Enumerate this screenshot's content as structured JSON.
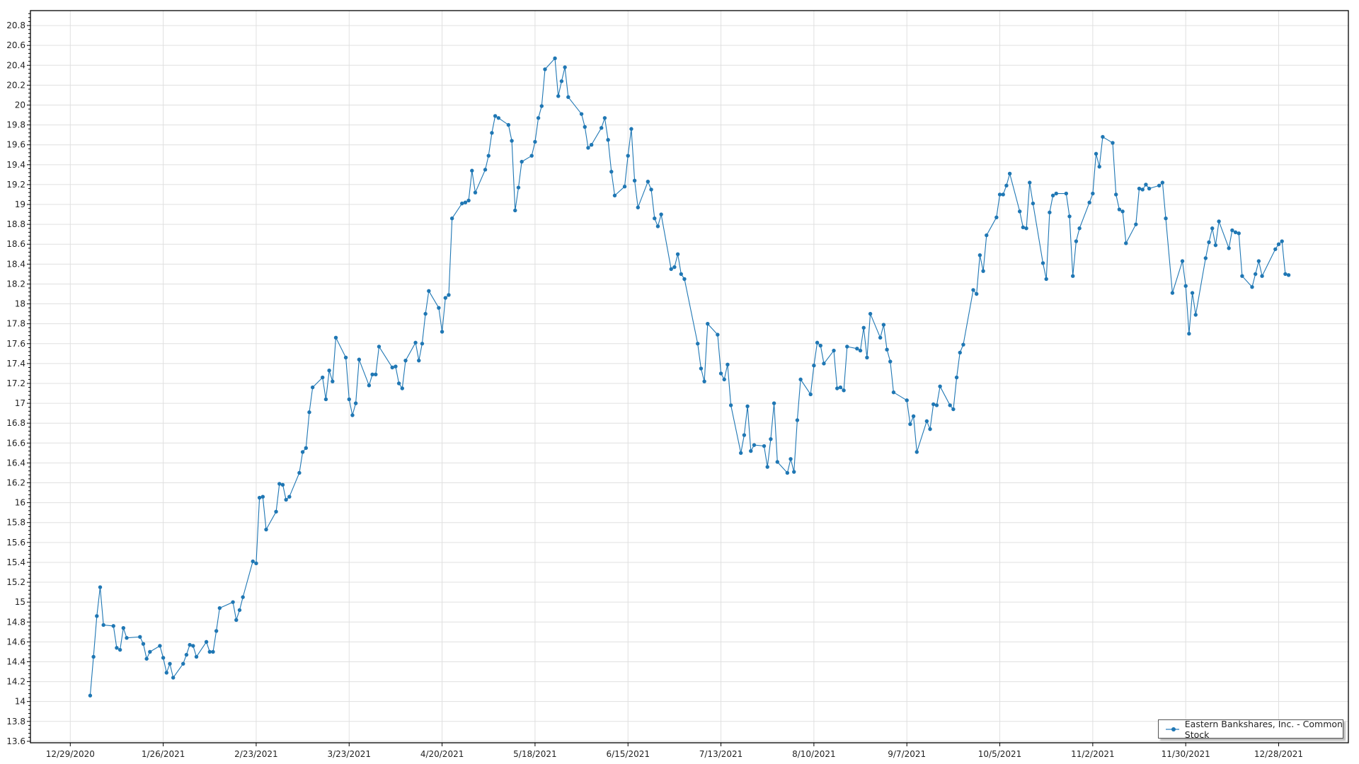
{
  "chart_data": {
    "type": "line",
    "title": "",
    "xlabel": "",
    "ylabel": "",
    "x_type": "date",
    "xlim": [
      "12/17/2020",
      "1/18/2022"
    ],
    "ylim": [
      13.585,
      20.95
    ],
    "x_ticks": [
      "12/29/2020",
      "1/26/2021",
      "2/23/2021",
      "3/23/2021",
      "4/20/2021",
      "5/18/2021",
      "6/15/2021",
      "7/13/2021",
      "8/10/2021",
      "9/7/2021",
      "10/5/2021",
      "11/2/2021",
      "11/30/2021",
      "12/28/2021"
    ],
    "y_ticks": [
      "13.6",
      "13.8",
      "14",
      "14.2",
      "14.4",
      "14.6",
      "14.8",
      "15",
      "15.2",
      "15.4",
      "15.6",
      "15.8",
      "16",
      "16.2",
      "16.4",
      "16.6",
      "16.8",
      "17",
      "17.2",
      "17.4",
      "17.6",
      "17.8",
      "18",
      "18.2",
      "18.4",
      "18.6",
      "18.8",
      "19",
      "19.2",
      "19.4",
      "19.6",
      "19.8",
      "20",
      "20.2",
      "20.4",
      "20.6",
      "20.8"
    ],
    "grid": true,
    "legend_placement": "bottom-right",
    "colors": {
      "series": "#1f77b4",
      "grid": "#e0e0e0",
      "axis": "#000000"
    },
    "series": [
      {
        "name": "Eastern Bankshares, Inc. - Common Stock",
        "marker": "circle",
        "points": [
          [
            "1/4/2021",
            14.06
          ],
          [
            "1/5/2021",
            14.45
          ],
          [
            "1/6/2021",
            14.86
          ],
          [
            "1/7/2021",
            15.15
          ],
          [
            "1/8/2021",
            14.77
          ],
          [
            "1/11/2021",
            14.76
          ],
          [
            "1/12/2021",
            14.54
          ],
          [
            "1/13/2021",
            14.52
          ],
          [
            "1/14/2021",
            14.74
          ],
          [
            "1/15/2021",
            14.64
          ],
          [
            "1/19/2021",
            14.65
          ],
          [
            "1/20/2021",
            14.58
          ],
          [
            "1/21/2021",
            14.43
          ],
          [
            "1/22/2021",
            14.5
          ],
          [
            "1/25/2021",
            14.56
          ],
          [
            "1/26/2021",
            14.44
          ],
          [
            "1/27/2021",
            14.29
          ],
          [
            "1/28/2021",
            14.38
          ],
          [
            "1/29/2021",
            14.24
          ],
          [
            "2/1/2021",
            14.38
          ],
          [
            "2/2/2021",
            14.47
          ],
          [
            "2/3/2021",
            14.57
          ],
          [
            "2/4/2021",
            14.56
          ],
          [
            "2/5/2021",
            14.45
          ],
          [
            "2/8/2021",
            14.6
          ],
          [
            "2/9/2021",
            14.5
          ],
          [
            "2/10/2021",
            14.5
          ],
          [
            "2/11/2021",
            14.71
          ],
          [
            "2/12/2021",
            14.94
          ],
          [
            "2/16/2021",
            15.0
          ],
          [
            "2/17/2021",
            14.82
          ],
          [
            "2/18/2021",
            14.92
          ],
          [
            "2/19/2021",
            15.05
          ],
          [
            "2/22/2021",
            15.41
          ],
          [
            "2/23/2021",
            15.39
          ],
          [
            "2/24/2021",
            16.05
          ],
          [
            "2/25/2021",
            16.06
          ],
          [
            "2/26/2021",
            15.73
          ],
          [
            "3/1/2021",
            15.91
          ],
          [
            "3/2/2021",
            16.19
          ],
          [
            "3/3/2021",
            16.18
          ],
          [
            "3/4/2021",
            16.03
          ],
          [
            "3/5/2021",
            16.06
          ],
          [
            "3/8/2021",
            16.3
          ],
          [
            "3/9/2021",
            16.51
          ],
          [
            "3/10/2021",
            16.55
          ],
          [
            "3/11/2021",
            16.91
          ],
          [
            "3/12/2021",
            17.16
          ],
          [
            "3/15/2021",
            17.26
          ],
          [
            "3/16/2021",
            17.04
          ],
          [
            "3/17/2021",
            17.33
          ],
          [
            "3/18/2021",
            17.22
          ],
          [
            "3/19/2021",
            17.66
          ],
          [
            "3/22/2021",
            17.46
          ],
          [
            "3/23/2021",
            17.04
          ],
          [
            "3/24/2021",
            16.88
          ],
          [
            "3/25/2021",
            17.0
          ],
          [
            "3/26/2021",
            17.44
          ],
          [
            "3/29/2021",
            17.18
          ],
          [
            "3/30/2021",
            17.29
          ],
          [
            "3/31/2021",
            17.29
          ],
          [
            "4/1/2021",
            17.57
          ],
          [
            "4/5/2021",
            17.36
          ],
          [
            "4/6/2021",
            17.37
          ],
          [
            "4/7/2021",
            17.2
          ],
          [
            "4/8/2021",
            17.15
          ],
          [
            "4/9/2021",
            17.43
          ],
          [
            "4/12/2021",
            17.61
          ],
          [
            "4/13/2021",
            17.43
          ],
          [
            "4/14/2021",
            17.6
          ],
          [
            "4/15/2021",
            17.9
          ],
          [
            "4/16/2021",
            18.13
          ],
          [
            "4/19/2021",
            17.96
          ],
          [
            "4/20/2021",
            17.72
          ],
          [
            "4/21/2021",
            18.06
          ],
          [
            "4/22/2021",
            18.09
          ],
          [
            "4/23/2021",
            18.86
          ],
          [
            "4/26/2021",
            19.01
          ],
          [
            "4/27/2021",
            19.02
          ],
          [
            "4/28/2021",
            19.04
          ],
          [
            "4/29/2021",
            19.34
          ],
          [
            "4/30/2021",
            19.12
          ],
          [
            "5/3/2021",
            19.35
          ],
          [
            "5/4/2021",
            19.49
          ],
          [
            "5/5/2021",
            19.72
          ],
          [
            "5/6/2021",
            19.89
          ],
          [
            "5/7/2021",
            19.87
          ],
          [
            "5/10/2021",
            19.8
          ],
          [
            "5/11/2021",
            19.64
          ],
          [
            "5/12/2021",
            18.94
          ],
          [
            "5/13/2021",
            19.17
          ],
          [
            "5/14/2021",
            19.43
          ],
          [
            "5/17/2021",
            19.49
          ],
          [
            "5/18/2021",
            19.63
          ],
          [
            "5/19/2021",
            19.87
          ],
          [
            "5/20/2021",
            19.99
          ],
          [
            "5/21/2021",
            20.36
          ],
          [
            "5/24/2021",
            20.47
          ],
          [
            "5/25/2021",
            20.09
          ],
          [
            "5/26/2021",
            20.24
          ],
          [
            "5/27/2021",
            20.38
          ],
          [
            "5/28/2021",
            20.08
          ],
          [
            "6/1/2021",
            19.91
          ],
          [
            "6/2/2021",
            19.78
          ],
          [
            "6/3/2021",
            19.57
          ],
          [
            "6/4/2021",
            19.6
          ],
          [
            "6/7/2021",
            19.77
          ],
          [
            "6/8/2021",
            19.87
          ],
          [
            "6/9/2021",
            19.65
          ],
          [
            "6/10/2021",
            19.33
          ],
          [
            "6/11/2021",
            19.09
          ],
          [
            "6/14/2021",
            19.18
          ],
          [
            "6/15/2021",
            19.49
          ],
          [
            "6/16/2021",
            19.76
          ],
          [
            "6/17/2021",
            19.24
          ],
          [
            "6/18/2021",
            18.97
          ],
          [
            "6/21/2021",
            19.23
          ],
          [
            "6/22/2021",
            19.15
          ],
          [
            "6/23/2021",
            18.86
          ],
          [
            "6/24/2021",
            18.78
          ],
          [
            "6/25/2021",
            18.9
          ],
          [
            "6/28/2021",
            18.35
          ],
          [
            "6/29/2021",
            18.37
          ],
          [
            "6/30/2021",
            18.5
          ],
          [
            "7/1/2021",
            18.3
          ],
          [
            "7/2/2021",
            18.25
          ],
          [
            "7/6/2021",
            17.6
          ],
          [
            "7/7/2021",
            17.35
          ],
          [
            "7/8/2021",
            17.22
          ],
          [
            "7/9/2021",
            17.8
          ],
          [
            "7/12/2021",
            17.69
          ],
          [
            "7/13/2021",
            17.3
          ],
          [
            "7/14/2021",
            17.24
          ],
          [
            "7/15/2021",
            17.39
          ],
          [
            "7/16/2021",
            16.98
          ],
          [
            "7/19/2021",
            16.5
          ],
          [
            "7/20/2021",
            16.68
          ],
          [
            "7/21/2021",
            16.97
          ],
          [
            "7/22/2021",
            16.52
          ],
          [
            "7/23/2021",
            16.58
          ],
          [
            "7/26/2021",
            16.57
          ],
          [
            "7/27/2021",
            16.36
          ],
          [
            "7/28/2021",
            16.64
          ],
          [
            "7/29/2021",
            17.0
          ],
          [
            "7/30/2021",
            16.41
          ],
          [
            "8/2/2021",
            16.3
          ],
          [
            "8/3/2021",
            16.44
          ],
          [
            "8/4/2021",
            16.31
          ],
          [
            "8/5/2021",
            16.83
          ],
          [
            "8/6/2021",
            17.24
          ],
          [
            "8/9/2021",
            17.09
          ],
          [
            "8/10/2021",
            17.38
          ],
          [
            "8/11/2021",
            17.61
          ],
          [
            "8/12/2021",
            17.58
          ],
          [
            "8/13/2021",
            17.4
          ],
          [
            "8/16/2021",
            17.53
          ],
          [
            "8/17/2021",
            17.15
          ],
          [
            "8/18/2021",
            17.16
          ],
          [
            "8/19/2021",
            17.13
          ],
          [
            "8/20/2021",
            17.57
          ],
          [
            "8/23/2021",
            17.55
          ],
          [
            "8/24/2021",
            17.53
          ],
          [
            "8/25/2021",
            17.76
          ],
          [
            "8/26/2021",
            17.46
          ],
          [
            "8/27/2021",
            17.9
          ],
          [
            "8/30/2021",
            17.66
          ],
          [
            "8/31/2021",
            17.79
          ],
          [
            "9/1/2021",
            17.54
          ],
          [
            "9/2/2021",
            17.42
          ],
          [
            "9/3/2021",
            17.11
          ],
          [
            "9/7/2021",
            17.03
          ],
          [
            "9/8/2021",
            16.79
          ],
          [
            "9/9/2021",
            16.87
          ],
          [
            "9/10/2021",
            16.51
          ],
          [
            "9/13/2021",
            16.82
          ],
          [
            "9/14/2021",
            16.74
          ],
          [
            "9/15/2021",
            16.99
          ],
          [
            "9/16/2021",
            16.98
          ],
          [
            "9/17/2021",
            17.17
          ],
          [
            "9/20/2021",
            16.98
          ],
          [
            "9/21/2021",
            16.94
          ],
          [
            "9/22/2021",
            17.26
          ],
          [
            "9/23/2021",
            17.51
          ],
          [
            "9/24/2021",
            17.59
          ],
          [
            "9/27/2021",
            18.14
          ],
          [
            "9/28/2021",
            18.1
          ],
          [
            "9/29/2021",
            18.49
          ],
          [
            "9/30/2021",
            18.33
          ],
          [
            "10/1/2021",
            18.69
          ],
          [
            "10/4/2021",
            18.87
          ],
          [
            "10/5/2021",
            19.1
          ],
          [
            "10/6/2021",
            19.1
          ],
          [
            "10/7/2021",
            19.19
          ],
          [
            "10/8/2021",
            19.31
          ],
          [
            "10/11/2021",
            18.93
          ],
          [
            "10/12/2021",
            18.77
          ],
          [
            "10/13/2021",
            18.76
          ],
          [
            "10/14/2021",
            19.22
          ],
          [
            "10/15/2021",
            19.01
          ],
          [
            "10/18/2021",
            18.41
          ],
          [
            "10/19/2021",
            18.25
          ],
          [
            "10/20/2021",
            18.92
          ],
          [
            "10/21/2021",
            19.09
          ],
          [
            "10/22/2021",
            19.11
          ],
          [
            "10/25/2021",
            19.11
          ],
          [
            "10/26/2021",
            18.88
          ],
          [
            "10/27/2021",
            18.28
          ],
          [
            "10/28/2021",
            18.63
          ],
          [
            "10/29/2021",
            18.76
          ],
          [
            "11/1/2021",
            19.02
          ],
          [
            "11/2/2021",
            19.11
          ],
          [
            "11/3/2021",
            19.51
          ],
          [
            "11/4/2021",
            19.38
          ],
          [
            "11/5/2021",
            19.68
          ],
          [
            "11/8/2021",
            19.62
          ],
          [
            "11/9/2021",
            19.1
          ],
          [
            "11/10/2021",
            18.95
          ],
          [
            "11/11/2021",
            18.93
          ],
          [
            "11/12/2021",
            18.61
          ],
          [
            "11/15/2021",
            18.8
          ],
          [
            "11/16/2021",
            19.16
          ],
          [
            "11/17/2021",
            19.15
          ],
          [
            "11/18/2021",
            19.2
          ],
          [
            "11/19/2021",
            19.16
          ],
          [
            "11/22/2021",
            19.19
          ],
          [
            "11/23/2021",
            19.22
          ],
          [
            "11/24/2021",
            18.86
          ],
          [
            "11/26/2021",
            18.11
          ],
          [
            "11/29/2021",
            18.43
          ],
          [
            "11/30/2021",
            18.18
          ],
          [
            "12/1/2021",
            17.7
          ],
          [
            "12/2/2021",
            18.11
          ],
          [
            "12/3/2021",
            17.89
          ],
          [
            "12/6/2021",
            18.46
          ],
          [
            "12/7/2021",
            18.62
          ],
          [
            "12/8/2021",
            18.76
          ],
          [
            "12/9/2021",
            18.59
          ],
          [
            "12/10/2021",
            18.83
          ],
          [
            "12/13/2021",
            18.56
          ],
          [
            "12/14/2021",
            18.74
          ],
          [
            "12/15/2021",
            18.72
          ],
          [
            "12/16/2021",
            18.71
          ],
          [
            "12/17/2021",
            18.28
          ],
          [
            "12/20/2021",
            18.17
          ],
          [
            "12/21/2021",
            18.3
          ],
          [
            "12/22/2021",
            18.43
          ],
          [
            "12/23/2021",
            18.28
          ],
          [
            "12/27/2021",
            18.55
          ],
          [
            "12/28/2021",
            18.6
          ],
          [
            "12/29/2021",
            18.63
          ],
          [
            "12/30/2021",
            18.3
          ],
          [
            "12/31/2021",
            18.29
          ]
        ]
      }
    ]
  }
}
